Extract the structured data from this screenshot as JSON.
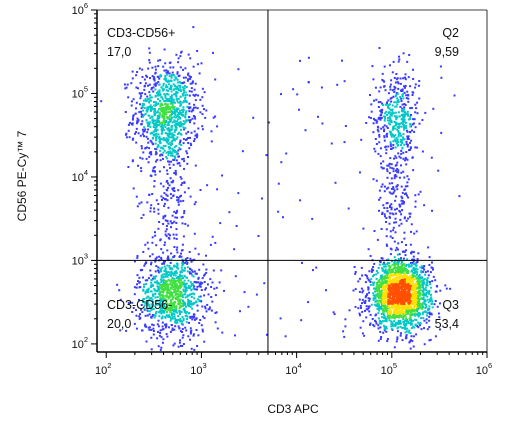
{
  "chart_data": {
    "type": "scatter",
    "subtype": "flow-cytometry-density-dot-plot",
    "xlabel": "CD3 APC",
    "ylabel": "CD56 PE-Cy™ 7",
    "xscale": "log",
    "yscale": "log",
    "xlim": [
      80,
      1000000
    ],
    "ylim": [
      80,
      1000000
    ],
    "x_ticks": [
      {
        "base": "10",
        "exp": "2",
        "value": 100
      },
      {
        "base": "10",
        "exp": "3",
        "value": 1000
      },
      {
        "base": "10",
        "exp": "4",
        "value": 10000
      },
      {
        "base": "10",
        "exp": "5",
        "value": 100000
      },
      {
        "base": "10",
        "exp": "6",
        "value": 1000000
      }
    ],
    "y_ticks": [
      {
        "base": "10",
        "exp": "2",
        "value": 100
      },
      {
        "base": "10",
        "exp": "3",
        "value": 1000
      },
      {
        "base": "10",
        "exp": "4",
        "value": 10000
      },
      {
        "base": "10",
        "exp": "5",
        "value": 100000
      },
      {
        "base": "10",
        "exp": "6",
        "value": 1000000
      }
    ],
    "gate_x": 5000,
    "gate_y": 1000,
    "quadrants": [
      {
        "position": "top-left",
        "name": "CD3-CD56+",
        "percent": "17,0"
      },
      {
        "position": "top-right",
        "name": "Q2",
        "percent": "9,59"
      },
      {
        "position": "bottom-left",
        "name": "CD3-CD56-",
        "percent": "20,0"
      },
      {
        "position": "bottom-right",
        "name": "Q3",
        "percent": "53,4"
      }
    ],
    "populations": [
      {
        "quadrant": "CD3-CD56+",
        "center": [
          420,
          60000
        ],
        "spread_decades": [
          0.17,
          0.3
        ],
        "events": 900,
        "color_peak": "#30c080"
      },
      {
        "quadrant": "CD3-CD56+ tail",
        "center": [
          450,
          6000
        ],
        "spread_decades": [
          0.12,
          0.4
        ],
        "events": 180,
        "color_peak": "#2050e0"
      },
      {
        "quadrant": "Q2",
        "center": [
          110000,
          50000
        ],
        "spread_decades": [
          0.12,
          0.3
        ],
        "events": 420,
        "color_peak": "#2050e0"
      },
      {
        "quadrant": "Q2 tail",
        "center": [
          110000,
          5000
        ],
        "spread_decades": [
          0.1,
          0.3
        ],
        "events": 140,
        "color_peak": "#2050e0"
      },
      {
        "quadrant": "CD3-CD56-",
        "center": [
          480,
          400
        ],
        "spread_decades": [
          0.18,
          0.25
        ],
        "events": 950,
        "color_peak": "#40d060"
      },
      {
        "quadrant": "Q3",
        "center": [
          120000,
          400
        ],
        "spread_decades": [
          0.16,
          0.2
        ],
        "events": 1900,
        "color_peak": "#ff6a00"
      }
    ],
    "colors": {
      "low": "#3a3aff",
      "mid": "#00c8c8",
      "midhigh": "#40e040",
      "high": "#ffe000",
      "peak": "#ff5000",
      "axis": "#000000",
      "gate": "#000000"
    },
    "grid": false,
    "legend": "none"
  }
}
